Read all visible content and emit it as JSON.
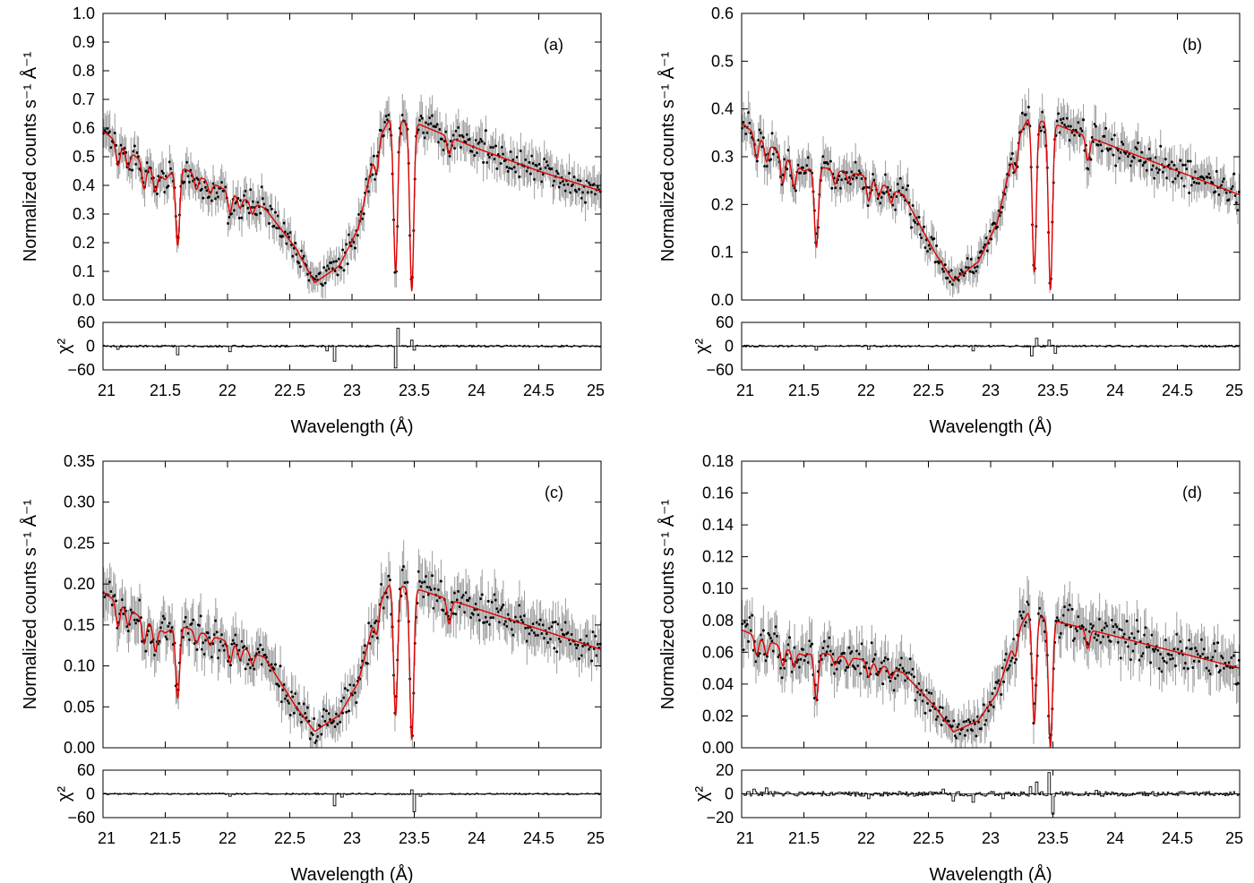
{
  "figure": {
    "xlabel": "Wavelength (Å)",
    "ylabel": "Normalized counts s⁻¹ Å⁻¹",
    "chi_label": "χ²",
    "colors": {
      "data": "#000000",
      "errorbar": "#9a9a9a",
      "model": "#dd0000",
      "residual": "#000000"
    }
  },
  "chart_data": [
    {
      "type": "scatter",
      "panel": "(a)",
      "xlim": [
        21,
        25
      ],
      "xticks": [
        "21",
        "21.5",
        "22",
        "22.5",
        "23",
        "23.5",
        "24",
        "24.5",
        "25"
      ],
      "ylim": [
        0,
        1.0
      ],
      "yticks": [
        "0.0",
        "0.1",
        "0.2",
        "0.3",
        "0.4",
        "0.5",
        "0.6",
        "0.7",
        "0.8",
        "0.9",
        "1.0"
      ],
      "resid_ylim": [
        -60,
        60
      ],
      "resid_yticks": [
        "60",
        "0",
        "−60"
      ],
      "continuum": [
        [
          21.0,
          0.59
        ],
        [
          21.5,
          0.42
        ],
        [
          21.6,
          0.47
        ],
        [
          22.0,
          0.38
        ],
        [
          22.3,
          0.32
        ],
        [
          22.55,
          0.18
        ],
        [
          22.7,
          0.06
        ],
        [
          22.9,
          0.12
        ],
        [
          23.05,
          0.25
        ],
        [
          23.2,
          0.55
        ],
        [
          23.3,
          0.63
        ],
        [
          23.5,
          0.62
        ],
        [
          24.0,
          0.53
        ],
        [
          24.5,
          0.45
        ],
        [
          25.0,
          0.38
        ]
      ],
      "absorption_lines": [
        [
          21.12,
          0.08
        ],
        [
          21.2,
          0.06
        ],
        [
          21.33,
          0.09
        ],
        [
          21.42,
          0.07
        ],
        [
          21.6,
          0.28
        ],
        [
          21.75,
          0.05
        ],
        [
          21.86,
          0.04
        ],
        [
          22.02,
          0.07
        ],
        [
          22.1,
          0.04
        ],
        [
          22.2,
          0.04
        ],
        [
          23.2,
          0.1
        ],
        [
          23.35,
          0.53
        ],
        [
          23.48,
          0.59
        ],
        [
          23.78,
          0.06
        ]
      ],
      "noise_scale": 0.05,
      "resid_spikes": [
        [
          21.6,
          -22
        ],
        [
          21.12,
          -8
        ],
        [
          22.02,
          -14
        ],
        [
          22.86,
          -38
        ],
        [
          22.8,
          -12
        ],
        [
          23.35,
          -55
        ],
        [
          23.37,
          45
        ],
        [
          23.48,
          15
        ],
        [
          23.5,
          -10
        ]
      ],
      "resid_noise": 2.5
    },
    {
      "type": "scatter",
      "panel": "(b)",
      "xlim": [
        21,
        25
      ],
      "xticks": [
        "21",
        "21.5",
        "22",
        "22.5",
        "23",
        "23.5",
        "24",
        "24.5",
        "25"
      ],
      "ylim": [
        0,
        0.6
      ],
      "yticks": [
        "0.0",
        "0.1",
        "0.2",
        "0.3",
        "0.4",
        "0.5",
        "0.6"
      ],
      "resid_ylim": [
        -60,
        60
      ],
      "resid_yticks": [
        "60",
        "0",
        "−60"
      ],
      "continuum": [
        [
          21.0,
          0.37
        ],
        [
          21.5,
          0.27
        ],
        [
          21.6,
          0.28
        ],
        [
          22.0,
          0.26
        ],
        [
          22.3,
          0.22
        ],
        [
          22.55,
          0.1
        ],
        [
          22.7,
          0.04
        ],
        [
          22.9,
          0.08
        ],
        [
          23.05,
          0.16
        ],
        [
          23.2,
          0.33
        ],
        [
          23.3,
          0.38
        ],
        [
          23.5,
          0.37
        ],
        [
          24.0,
          0.32
        ],
        [
          24.5,
          0.27
        ],
        [
          25.0,
          0.22
        ]
      ],
      "absorption_lines": [
        [
          21.12,
          0.05
        ],
        [
          21.2,
          0.04
        ],
        [
          21.33,
          0.06
        ],
        [
          21.42,
          0.05
        ],
        [
          21.6,
          0.17
        ],
        [
          21.75,
          0.03
        ],
        [
          21.86,
          0.02
        ],
        [
          22.02,
          0.05
        ],
        [
          22.1,
          0.03
        ],
        [
          22.2,
          0.03
        ],
        [
          23.2,
          0.06
        ],
        [
          23.35,
          0.32
        ],
        [
          23.48,
          0.35
        ],
        [
          23.78,
          0.05
        ]
      ],
      "noise_scale": 0.03,
      "resid_spikes": [
        [
          21.6,
          -10
        ],
        [
          22.02,
          -8
        ],
        [
          22.86,
          -12
        ],
        [
          23.33,
          -25
        ],
        [
          23.37,
          20
        ],
        [
          23.47,
          15
        ],
        [
          23.52,
          -18
        ]
      ],
      "resid_noise": 2.5
    },
    {
      "type": "scatter",
      "panel": "(c)",
      "xlim": [
        21,
        25
      ],
      "xticks": [
        "21",
        "21.5",
        "22",
        "22.5",
        "23",
        "23.5",
        "24",
        "24.5",
        "25"
      ],
      "ylim": [
        0,
        0.35
      ],
      "yticks": [
        "0.00",
        "0.05",
        "0.10",
        "0.15",
        "0.20",
        "0.25",
        "0.30",
        "0.35"
      ],
      "resid_ylim": [
        -60,
        60
      ],
      "resid_yticks": [
        "60",
        "0",
        "−60"
      ],
      "continuum": [
        [
          21.0,
          0.19
        ],
        [
          21.5,
          0.14
        ],
        [
          21.6,
          0.15
        ],
        [
          22.0,
          0.13
        ],
        [
          22.3,
          0.11
        ],
        [
          22.55,
          0.05
        ],
        [
          22.7,
          0.02
        ],
        [
          22.9,
          0.04
        ],
        [
          23.05,
          0.08
        ],
        [
          23.2,
          0.17
        ],
        [
          23.3,
          0.2
        ],
        [
          23.5,
          0.195
        ],
        [
          24.0,
          0.17
        ],
        [
          24.5,
          0.145
        ],
        [
          25.0,
          0.12
        ]
      ],
      "absorption_lines": [
        [
          21.12,
          0.03
        ],
        [
          21.2,
          0.02
        ],
        [
          21.33,
          0.03
        ],
        [
          21.42,
          0.03
        ],
        [
          21.6,
          0.09
        ],
        [
          21.75,
          0.015
        ],
        [
          21.86,
          0.012
        ],
        [
          22.02,
          0.025
        ],
        [
          22.1,
          0.015
        ],
        [
          22.2,
          0.015
        ],
        [
          23.2,
          0.03
        ],
        [
          23.35,
          0.16
        ],
        [
          23.48,
          0.185
        ],
        [
          23.78,
          0.03
        ]
      ],
      "noise_scale": 0.022,
      "resid_spikes": [
        [
          22.02,
          -6
        ],
        [
          22.86,
          -30
        ],
        [
          22.92,
          -8
        ],
        [
          23.48,
          10
        ],
        [
          23.5,
          -45
        ],
        [
          23.55,
          -6
        ]
      ],
      "resid_noise": 2.0
    },
    {
      "type": "scatter",
      "panel": "(d)",
      "xlim": [
        21,
        25
      ],
      "xticks": [
        "21",
        "21.5",
        "22",
        "22.5",
        "23",
        "23.5",
        "24",
        "24.5",
        "25"
      ],
      "ylim": [
        0,
        0.18
      ],
      "yticks": [
        "0.00",
        "0.02",
        "0.04",
        "0.06",
        "0.08",
        "0.10",
        "0.12",
        "0.14",
        "0.16",
        "0.18"
      ],
      "resid_ylim": [
        -20,
        20
      ],
      "resid_yticks": [
        "20",
        "0",
        "−20"
      ],
      "continuum": [
        [
          21.0,
          0.074
        ],
        [
          21.5,
          0.058
        ],
        [
          21.6,
          0.06
        ],
        [
          22.0,
          0.055
        ],
        [
          22.3,
          0.047
        ],
        [
          22.55,
          0.026
        ],
        [
          22.7,
          0.01
        ],
        [
          22.9,
          0.017
        ],
        [
          23.05,
          0.034
        ],
        [
          23.2,
          0.07
        ],
        [
          23.3,
          0.085
        ],
        [
          23.5,
          0.08
        ],
        [
          24.0,
          0.07
        ],
        [
          24.5,
          0.06
        ],
        [
          25.0,
          0.05
        ]
      ],
      "absorption_lines": [
        [
          21.12,
          0.012
        ],
        [
          21.2,
          0.009
        ],
        [
          21.33,
          0.012
        ],
        [
          21.42,
          0.01
        ],
        [
          21.6,
          0.03
        ],
        [
          21.75,
          0.006
        ],
        [
          21.86,
          0.005
        ],
        [
          22.02,
          0.01
        ],
        [
          22.1,
          0.006
        ],
        [
          22.2,
          0.006
        ],
        [
          23.2,
          0.012
        ],
        [
          23.35,
          0.068
        ],
        [
          23.48,
          0.08
        ],
        [
          23.78,
          0.012
        ]
      ],
      "noise_scale": 0.012,
      "resid_spikes": [
        [
          21.1,
          4
        ],
        [
          21.2,
          5
        ],
        [
          22.02,
          -4
        ],
        [
          22.62,
          4
        ],
        [
          22.7,
          -6
        ],
        [
          22.86,
          -7
        ],
        [
          23.1,
          -4
        ],
        [
          23.32,
          6
        ],
        [
          23.37,
          10
        ],
        [
          23.47,
          18
        ],
        [
          23.5,
          -17
        ],
        [
          23.85,
          3
        ]
      ],
      "resid_noise": 2.0
    }
  ]
}
